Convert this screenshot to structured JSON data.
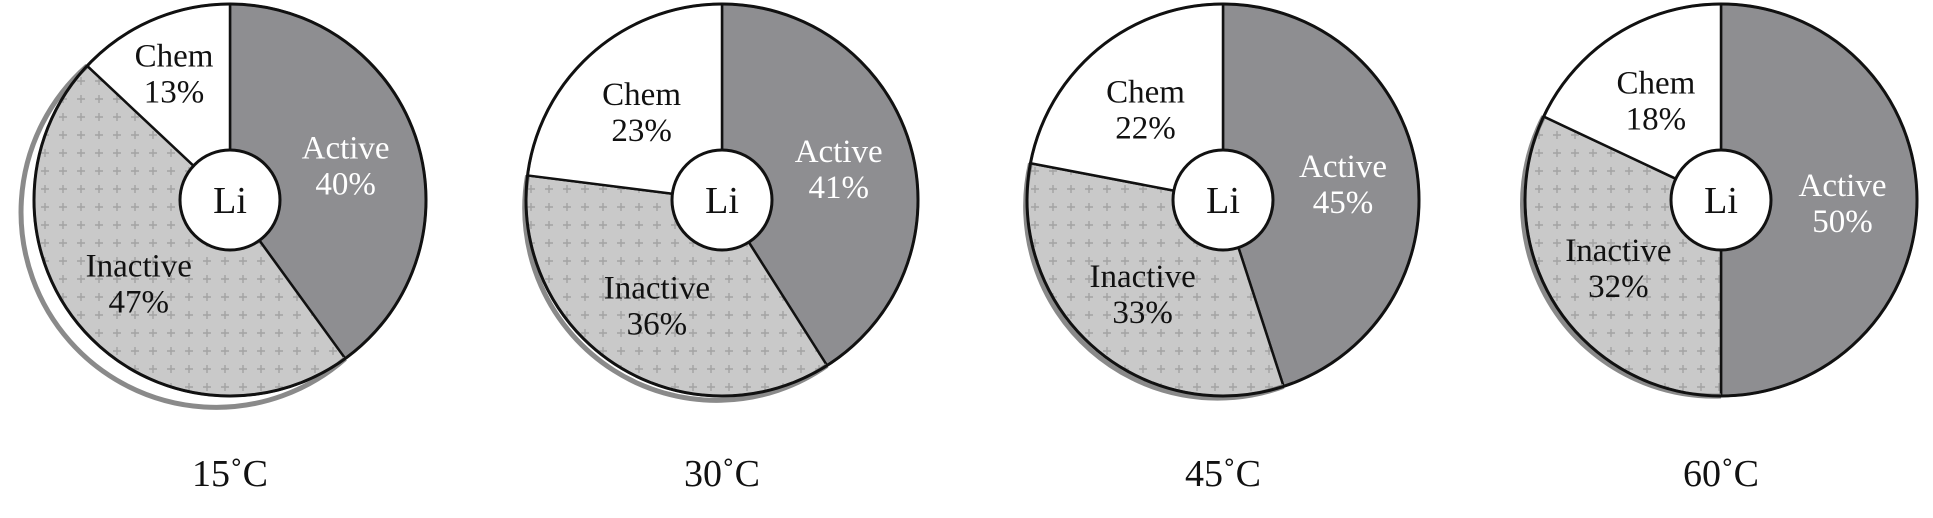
{
  "chart_data": [
    {
      "type": "pie",
      "caption": "15˚C",
      "center_label": "Li",
      "slices": [
        {
          "label": "Active",
          "value": 40,
          "display": "40%",
          "fill": "#8e8e91",
          "text_color": "#ffffff"
        },
        {
          "label": "Inactive",
          "value": 47,
          "display": "47%",
          "fill": "#c9c9c9",
          "text_color": "#111111"
        },
        {
          "label": "Chem",
          "value": 13,
          "display": "13%",
          "fill": "#ffffff",
          "text_color": "#111111"
        }
      ]
    },
    {
      "type": "pie",
      "caption": "30˚C",
      "center_label": "Li",
      "slices": [
        {
          "label": "Active",
          "value": 41,
          "display": "41%",
          "fill": "#8e8e91",
          "text_color": "#ffffff"
        },
        {
          "label": "Inactive",
          "value": 36,
          "display": "36%",
          "fill": "#c9c9c9",
          "text_color": "#111111"
        },
        {
          "label": "Chem",
          "value": 23,
          "display": "23%",
          "fill": "#ffffff",
          "text_color": "#111111"
        }
      ]
    },
    {
      "type": "pie",
      "caption": "45˚C",
      "center_label": "Li",
      "slices": [
        {
          "label": "Active",
          "value": 45,
          "display": "45%",
          "fill": "#8e8e91",
          "text_color": "#ffffff"
        },
        {
          "label": "Inactive",
          "value": 33,
          "display": "33%",
          "fill": "#c9c9c9",
          "text_color": "#111111"
        },
        {
          "label": "Chem",
          "value": 22,
          "display": "22%",
          "fill": "#ffffff",
          "text_color": "#111111"
        }
      ]
    },
    {
      "type": "pie",
      "caption": "60˚C",
      "center_label": "Li",
      "slices": [
        {
          "label": "Active",
          "value": 50,
          "display": "50%",
          "fill": "#8e8e91",
          "text_color": "#ffffff"
        },
        {
          "label": "Inactive",
          "value": 32,
          "display": "32%",
          "fill": "#c9c9c9",
          "text_color": "#111111"
        },
        {
          "label": "Chem",
          "value": 18,
          "display": "18%",
          "fill": "#ffffff",
          "text_color": "#111111"
        }
      ]
    }
  ]
}
